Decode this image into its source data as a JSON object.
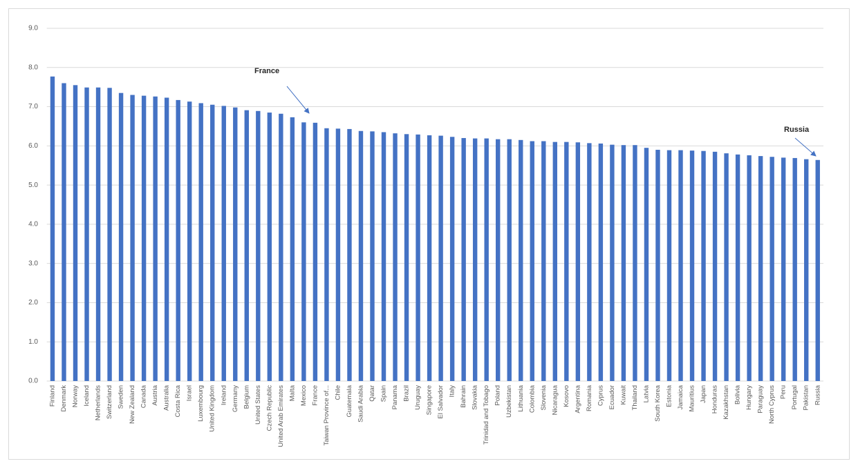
{
  "chart_data": {
    "type": "bar",
    "categories": [
      "Finland",
      "Denmark",
      "Norway",
      "Iceland",
      "Netherlands",
      "Switzerland",
      "Sweden",
      "New Zealand",
      "Canada",
      "Austria",
      "Australia",
      "Costa Rica",
      "Israel",
      "Luxembourg",
      "United Kingdom",
      "Ireland",
      "Germany",
      "Belgium",
      "United States",
      "Czech Republic",
      "United Arab Emirates",
      "Malta",
      "Mexico",
      "France",
      "Taiwan Province of...",
      "Chile",
      "Guatemala",
      "Saudi Arabia",
      "Qatar",
      "Spain",
      "Panama",
      "Brazil",
      "Uruguay",
      "Singapore",
      "El Salvador",
      "Italy",
      "Bahrain",
      "Slovakia",
      "Trinidad and Tobago",
      "Poland",
      "Uzbekistan",
      "Lithuania",
      "Colombia",
      "Slovenia",
      "Nicaragua",
      "Kosovo",
      "Argentina",
      "Romania",
      "Cyprus",
      "Ecuador",
      "Kuwait",
      "Thailand",
      "Latvia",
      "South Korea",
      "Estonia",
      "Jamaica",
      "Mauritius",
      "Japan",
      "Honduras",
      "Kazakhstan",
      "Bolivia",
      "Hungary",
      "Paraguay",
      "North Cyprus",
      "Peru",
      "Portugal",
      "Pakistan",
      "Russia"
    ],
    "values": [
      7.77,
      7.6,
      7.55,
      7.49,
      7.49,
      7.48,
      7.35,
      7.3,
      7.28,
      7.26,
      7.23,
      7.17,
      7.13,
      7.09,
      7.05,
      7.02,
      6.98,
      6.91,
      6.89,
      6.85,
      6.82,
      6.73,
      6.6,
      6.59,
      6.45,
      6.44,
      6.43,
      6.38,
      6.37,
      6.35,
      6.32,
      6.3,
      6.29,
      6.27,
      6.26,
      6.23,
      6.2,
      6.19,
      6.19,
      6.17,
      6.17,
      6.15,
      6.12,
      6.12,
      6.1,
      6.1,
      6.09,
      6.07,
      6.06,
      6.03,
      6.02,
      6.02,
      5.95,
      5.9,
      5.89,
      5.89,
      5.88,
      5.87,
      5.85,
      5.81,
      5.78,
      5.76,
      5.74,
      5.72,
      5.7,
      5.69,
      5.66,
      5.64
    ],
    "color": "#4472c4",
    "ylim": [
      0,
      9
    ],
    "yticks": [
      {
        "value": 0,
        "label": "0.0"
      },
      {
        "value": 1,
        "label": "1.0"
      },
      {
        "value": 2,
        "label": "2.0"
      },
      {
        "value": 3,
        "label": "3.0"
      },
      {
        "value": 4,
        "label": "4.0"
      },
      {
        "value": 5,
        "label": "5.0"
      },
      {
        "value": 6,
        "label": "6.0"
      },
      {
        "value": 7,
        "label": "7.0"
      },
      {
        "value": 8,
        "label": "8.0"
      },
      {
        "value": 9,
        "label": "9.0"
      }
    ],
    "grid": true,
    "annotations": [
      "France",
      "Russia"
    ]
  }
}
